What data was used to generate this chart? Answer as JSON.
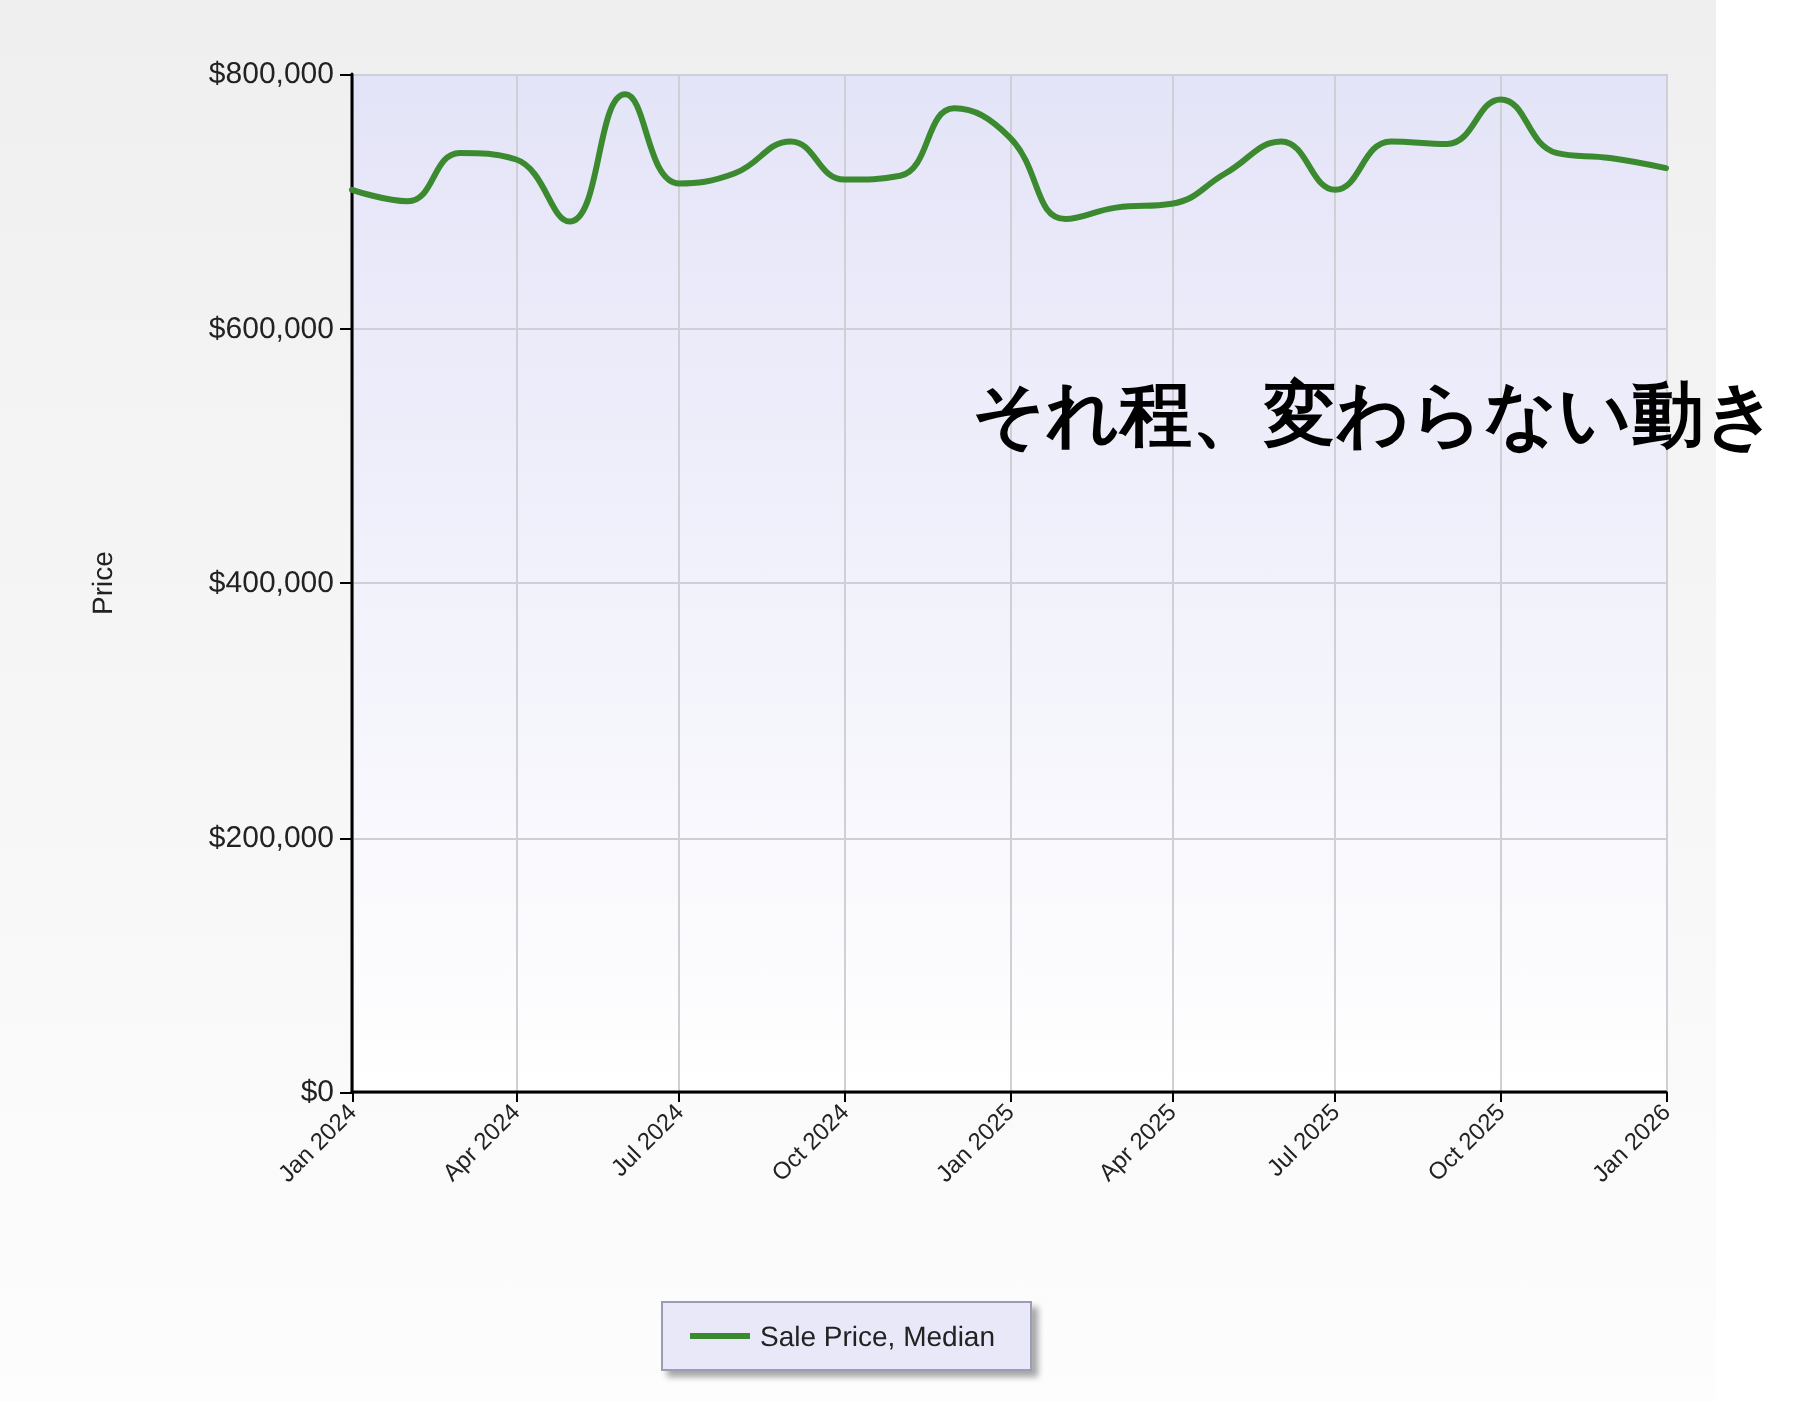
{
  "chart_data": {
    "type": "line",
    "ylabel": "Price",
    "annotations": [
      "それ程、変わらない動き"
    ],
    "x": [
      "2024-01",
      "2024-02",
      "2024-03",
      "2024-04",
      "2024-05",
      "2024-06",
      "2024-07",
      "2024-08",
      "2024-09",
      "2024-10",
      "2024-11",
      "2024-12",
      "2025-01",
      "2025-02",
      "2025-03",
      "2025-04",
      "2025-05",
      "2025-06",
      "2025-07",
      "2025-08",
      "2025-09",
      "2025-10",
      "2025-11",
      "2025-12",
      "2026-01"
    ],
    "series": [
      {
        "name": "Sale Price, Median",
        "color": "#3b8a30",
        "values": [
          709000,
          700000,
          738000,
          733000,
          684000,
          784000,
          714000,
          722000,
          747000,
          717000,
          720000,
          773000,
          750000,
          686000,
          695000,
          698000,
          722000,
          747000,
          709000,
          747000,
          745000,
          780000,
          738000,
          734000,
          726000
        ]
      }
    ],
    "xlim": [
      "2024-01",
      "2026-01"
    ],
    "xticks": [
      {
        "value": "2024-01",
        "label": "Jan 2024"
      },
      {
        "value": "2024-04",
        "label": "Apr 2024"
      },
      {
        "value": "2024-07",
        "label": "Jul 2024"
      },
      {
        "value": "2024-10",
        "label": "Oct 2024"
      },
      {
        "value": "2025-01",
        "label": "Jan 2025"
      },
      {
        "value": "2025-04",
        "label": "Apr 2025"
      },
      {
        "value": "2025-07",
        "label": "Jul 2025"
      },
      {
        "value": "2025-10",
        "label": "Oct 2025"
      },
      {
        "value": "2026-01",
        "label": "Jan 2026"
      }
    ],
    "ylim": [
      0,
      800000
    ],
    "yticks": [
      {
        "value": 0,
        "label": "$0"
      },
      {
        "value": 200000,
        "label": "$200,000"
      },
      {
        "value": 400000,
        "label": "$400,000"
      },
      {
        "value": 600000,
        "label": "$600,000"
      },
      {
        "value": 800000,
        "label": "$800,000"
      }
    ],
    "grid": true,
    "legend": "bottom",
    "marker": "none",
    "line_style": "solid"
  }
}
